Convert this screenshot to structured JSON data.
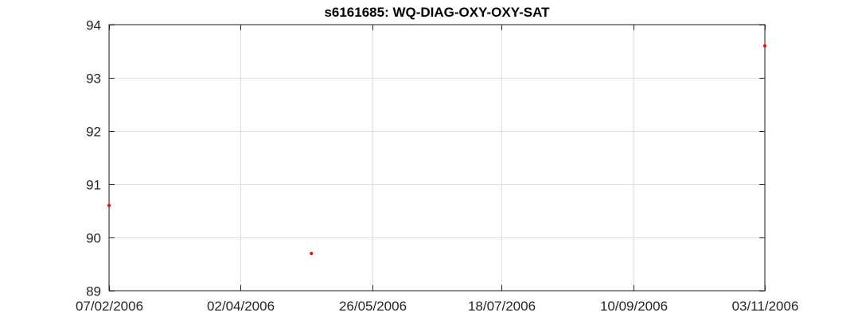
{
  "chart_data": {
    "type": "scatter",
    "title": "s6161685: WQ-DIAG-OXY-OXY-SAT",
    "xlabel": "",
    "ylabel": "",
    "x_axis_type": "date",
    "xlim": [
      "2006-02-07",
      "2006-11-03"
    ],
    "ylim": [
      89,
      94
    ],
    "x_ticks": [
      {
        "date": "2006-02-07",
        "label": "07/02/2006"
      },
      {
        "date": "2006-04-02",
        "label": "02/04/2006"
      },
      {
        "date": "2006-05-26",
        "label": "26/05/2006"
      },
      {
        "date": "2006-07-18",
        "label": "18/07/2006"
      },
      {
        "date": "2006-09-10",
        "label": "10/09/2006"
      },
      {
        "date": "2006-11-03",
        "label": "03/11/2006"
      }
    ],
    "y_ticks": [
      89,
      90,
      91,
      92,
      93,
      94
    ],
    "grid": true,
    "series": [
      {
        "color": "#ff0000",
        "points": [
          {
            "x": "2006-02-07",
            "y": 90.6
          },
          {
            "x": "2006-05-01",
            "y": 89.7
          },
          {
            "x": "2006-11-03",
            "y": 93.6
          }
        ]
      }
    ]
  }
}
